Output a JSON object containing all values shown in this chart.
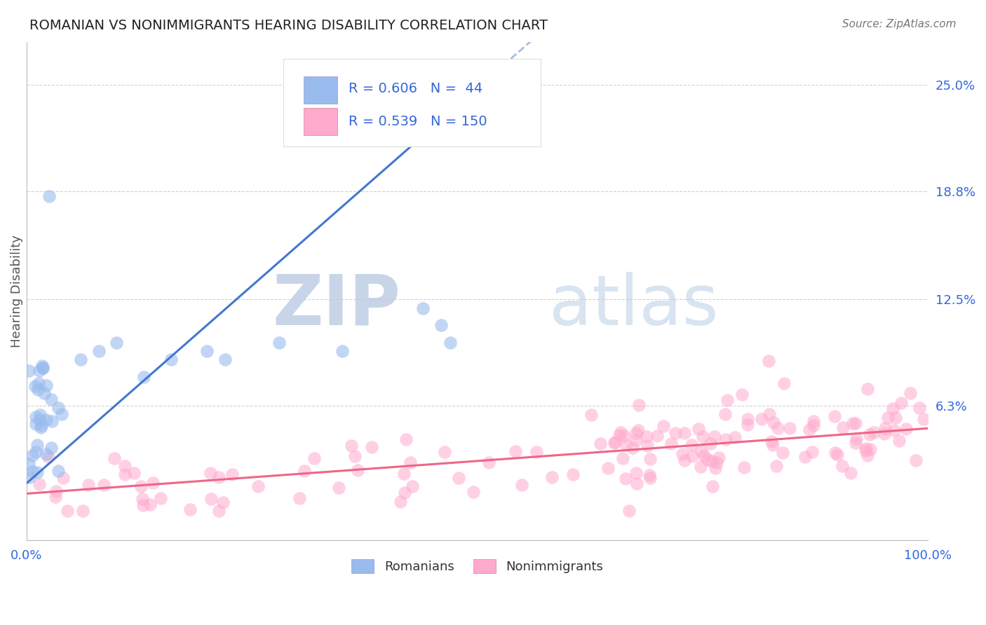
{
  "title": "ROMANIAN VS NONIMMIGRANTS HEARING DISABILITY CORRELATION CHART",
  "source": "Source: ZipAtlas.com",
  "ylabel": "Hearing Disability",
  "blue_R": 0.606,
  "blue_N": 44,
  "pink_R": 0.539,
  "pink_N": 150,
  "blue_scatter_color": "#99BBEE",
  "pink_scatter_color": "#FFAACC",
  "blue_line_color": "#4477CC",
  "pink_line_color": "#EE6688",
  "ref_line_color": "#AABBDD",
  "watermark_zip_color": "#C8D4E8",
  "watermark_atlas_color": "#D8E4F0",
  "title_color": "#222222",
  "source_color": "#777777",
  "legend_R_color": "#3366DD",
  "axis_tick_color": "#3366DD",
  "ytick_labels": [
    "6.3%",
    "12.5%",
    "18.8%",
    "25.0%"
  ],
  "ytick_values": [
    0.063,
    0.125,
    0.188,
    0.25
  ],
  "ymin": -0.015,
  "ymax": 0.275,
  "xmin": 0.0,
  "xmax": 1.0
}
